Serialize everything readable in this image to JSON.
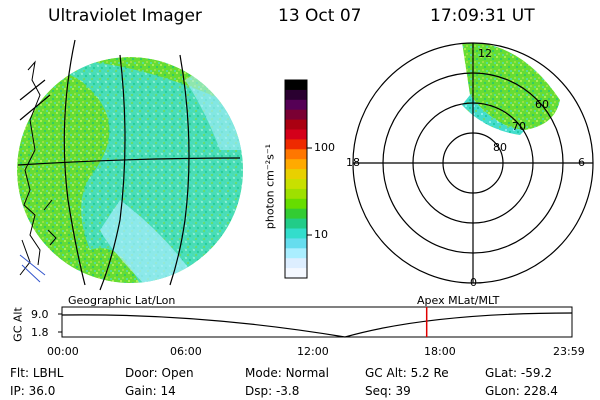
{
  "header": {
    "title": "Ultraviolet Imager",
    "date": "13 Oct 07",
    "time": "17:09:31 UT"
  },
  "colorbar": {
    "label": "photon cm⁻²s⁻¹",
    "ticks": [
      "100",
      "10"
    ],
    "colors": [
      "#000000",
      "#2a0030",
      "#550055",
      "#7a0033",
      "#aa0011",
      "#d4001a",
      "#ee2a00",
      "#ff7700",
      "#ffaa00",
      "#e8d000",
      "#c8e000",
      "#9ee000",
      "#66dd00",
      "#33cc33",
      "#22cc88",
      "#33ddcc",
      "#66ddee",
      "#aaeeff",
      "#ddeeff",
      "#f4f8ff"
    ]
  },
  "polar_plot": {
    "mlt_labels": [
      "12",
      "18",
      "6",
      "0"
    ],
    "lat_labels": [
      "60",
      "70",
      "80"
    ]
  },
  "timeline": {
    "left_label": "Geographic Lat/Lon",
    "right_label": "Apex MLat/MLT",
    "y_axis_label": "GC Alt",
    "y_ticks": [
      "9.0",
      "1.8"
    ],
    "x_ticks": [
      "00:00",
      "06:00",
      "12:00",
      "18:00",
      "23:59"
    ],
    "marker_time": "17:09",
    "marker_color": "#e00000"
  },
  "status": {
    "rows": [
      [
        {
          "label": "Flt:",
          "value": "LBHL"
        },
        {
          "label": "Door:",
          "value": "Open"
        },
        {
          "label": "Mode:",
          "value": "Normal"
        },
        {
          "label": "GC Alt:",
          "value": "5.2 Re"
        },
        {
          "label": "GLat:",
          "value": "-59.2"
        }
      ],
      [
        {
          "label": "IP:",
          "value": "36.0"
        },
        {
          "label": "Gain:",
          "value": "14"
        },
        {
          "label": "Dsp:",
          "value": "-3.8"
        },
        {
          "label": "Seq:",
          "value": "39"
        },
        {
          "label": "GLon:",
          "value": "228.4"
        }
      ]
    ]
  }
}
